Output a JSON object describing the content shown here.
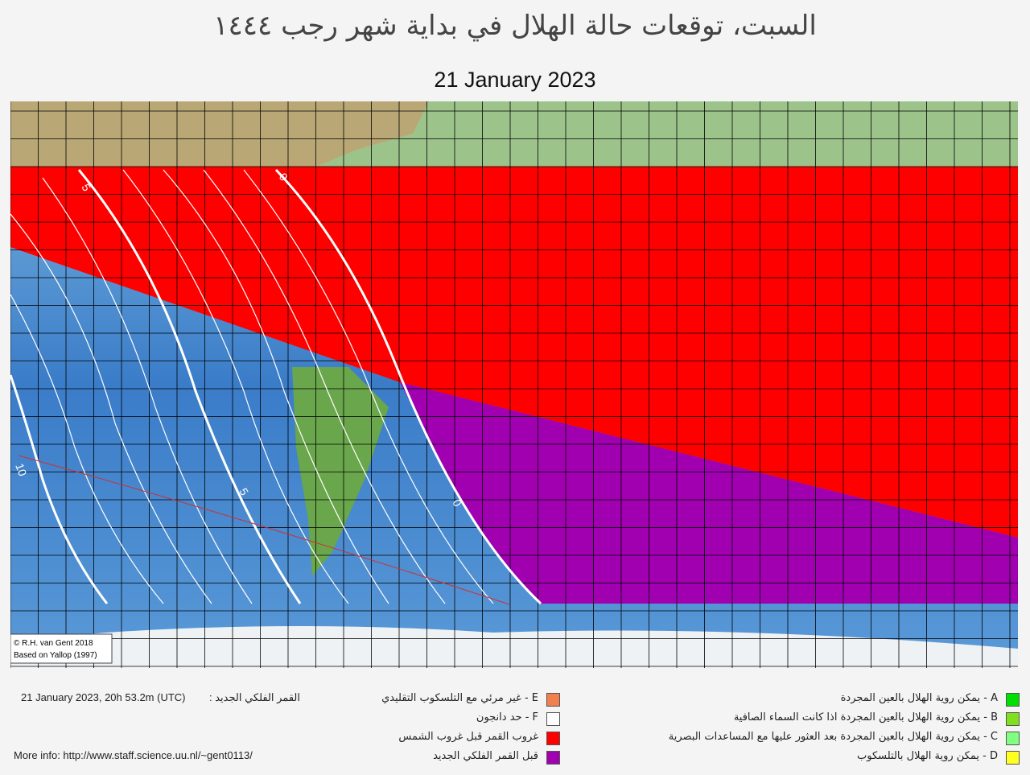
{
  "header": {
    "title": "السبت، توقعات حالة الهلال في بداية شهر رجب ١٤٤٤",
    "date": "21 January 2023"
  },
  "map": {
    "contour_labels": [
      "5",
      "0",
      "10",
      "5",
      "0"
    ],
    "credit": [
      "© R.H. van Gent 2018",
      "Based on Yallop (1997)"
    ]
  },
  "footer": {
    "new_moon_label": "القمر الفلكي الجديد :",
    "new_moon_time": "21 January 2023, 20h 53.2m (UTC)",
    "more_info": "More info: http://www.staff.science.uu.nl/~gent0113/"
  },
  "legend": {
    "left": [
      {
        "text": "E - غير مرئي مع التلسكوب التقليدي",
        "color": "#f08050"
      },
      {
        "text": "F - حد دانجون",
        "color": "#ffffff"
      },
      {
        "text": "غروب القمر قبل غروب الشمس",
        "color": "#ff0000"
      },
      {
        "text": "قبل القمر  الفلكي الجديد",
        "color": "#a000b0"
      }
    ],
    "right": [
      {
        "text": "A - يمكن روية الهلال بالعين المجردة",
        "color": "#00e000"
      },
      {
        "text": "B - يمكن روية الهلال بالعين المجردة اذا كانت السماء الصافية",
        "color": "#80e020"
      },
      {
        "text": "C - يمكن روية الهلال بالعين المجردة بعد العثور عليها مع المساعدات البصرية",
        "color": "#80ff80"
      },
      {
        "text": "D - يمكن روية الهلال بالتلسكوب",
        "color": "#ffff20"
      }
    ]
  }
}
